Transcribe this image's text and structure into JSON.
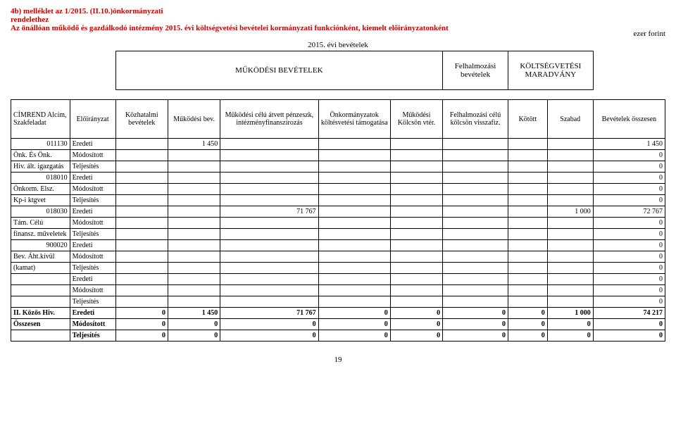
{
  "header": {
    "line1": "4b) melléklet az 1/2015. (II.10.)önkormányzati",
    "line2": "rendelethez",
    "line3": "Az önállóan működő és gazdálkodó intézmény 2015. évi költségvetési bevételei kormányzati funkciónként, kiemelt előirányzatonként",
    "ezer": "ezer forint",
    "year_title": "2015. évi bevételek"
  },
  "cat_headers": {
    "mukodesi": "MŰKÖDÉSI BEVÉTELEK",
    "felhalm": "Felhalmozási bevételek",
    "koltseg": "KÖLTSÉGVETÉSI MARADVÁNY"
  },
  "col_headers": {
    "c0": "CÍMREND Alcím, Szakfeladat",
    "c1": "Előirányzat",
    "c2": "Közhatalmi bevételek",
    "c3": "Működési bev.",
    "c4": "Működési célú átvett pénzeszk, intézményfinanszírozás",
    "c5": "Önkormányzatok költésvetési támogatása",
    "c6": "Működési Kölcsön vtér.",
    "c7": "Felhalmozási célú kölcsön visszafiz.",
    "c8": "Kötött",
    "c9": "Szabad",
    "c10": "Bevételek összesen"
  },
  "table": {
    "eloir": {
      "eredeti": "Eredeti",
      "modositott": "Módosított",
      "teljesites": "Teljesítés"
    },
    "groups": [
      {
        "code": "011130",
        "label_lines": [
          "Önk. És Önk.",
          "Hiv.",
          "ált. igazgatás"
        ],
        "rows": [
          {
            "eloir": "Eredeti",
            "c3": "1 450",
            "c10": "1 450"
          },
          {
            "eloir": "Módosított",
            "c10": "0"
          },
          {
            "eloir": "Teljesítés",
            "c10": "0"
          }
        ]
      },
      {
        "code": "018010",
        "label_lines": [
          "Önkorm. Elsz.",
          "Kp-i ktgvet"
        ],
        "rows": [
          {
            "eloir": "Eredeti",
            "c10": "0"
          },
          {
            "eloir": "Módosított",
            "c10": "0"
          },
          {
            "eloir": "Teljesítés",
            "c10": "0"
          }
        ]
      },
      {
        "code": "018030",
        "label_lines": [
          "Tám. Célú",
          "finansz.",
          "műveletek"
        ],
        "rows": [
          {
            "eloir": "Eredeti",
            "c4": "71 767",
            "c9": "1 000",
            "c10": "72 767"
          },
          {
            "eloir": "Módosított",
            "c10": "0"
          },
          {
            "eloir": "Teljesítés",
            "c10": "0"
          }
        ]
      },
      {
        "code": "900020",
        "label_lines": [
          "Bev. Áht.kívül",
          "(kamat)"
        ],
        "rows": [
          {
            "eloir": "Eredeti",
            "c10": "0"
          },
          {
            "eloir": "Módosított",
            "c10": "0"
          },
          {
            "eloir": "Teljesítés",
            "c10": "0"
          }
        ]
      },
      {
        "code": "",
        "label_lines": [
          "",
          "",
          ""
        ],
        "rows": [
          {
            "eloir": "Eredeti",
            "c10": "0"
          },
          {
            "eloir": "Módosított",
            "c10": "0"
          },
          {
            "eloir": "Teljesítés",
            "c10": "0"
          }
        ]
      }
    ],
    "summary": {
      "label1": "II. Közös Hiv.",
      "label2": "Összesen",
      "rows": [
        {
          "eloir": "Eredeti",
          "c2": "0",
          "c3": "1 450",
          "c4": "71 767",
          "c5": "0",
          "c6": "0",
          "c7": "0",
          "c8": "0",
          "c9": "1 000",
          "c10": "74 217"
        },
        {
          "eloir": "Módosított",
          "c2": "0",
          "c3": "0",
          "c4": "0",
          "c5": "0",
          "c6": "0",
          "c7": "0",
          "c8": "0",
          "c9": "0",
          "c10": "0"
        },
        {
          "eloir": "Teljesítés",
          "c2": "0",
          "c3": "0",
          "c4": "0",
          "c5": "0",
          "c6": "0",
          "c7": "0",
          "c8": "0",
          "c9": "0",
          "c10": "0"
        }
      ]
    }
  },
  "page_number": "19",
  "layout": {
    "col_widths_pct": [
      9,
      7,
      8,
      8,
      15,
      11,
      8,
      10,
      6,
      7,
      11
    ]
  },
  "colors": {
    "header_red": "#cc0000",
    "text": "#000000",
    "border": "#000000",
    "bg": "#ffffff"
  }
}
